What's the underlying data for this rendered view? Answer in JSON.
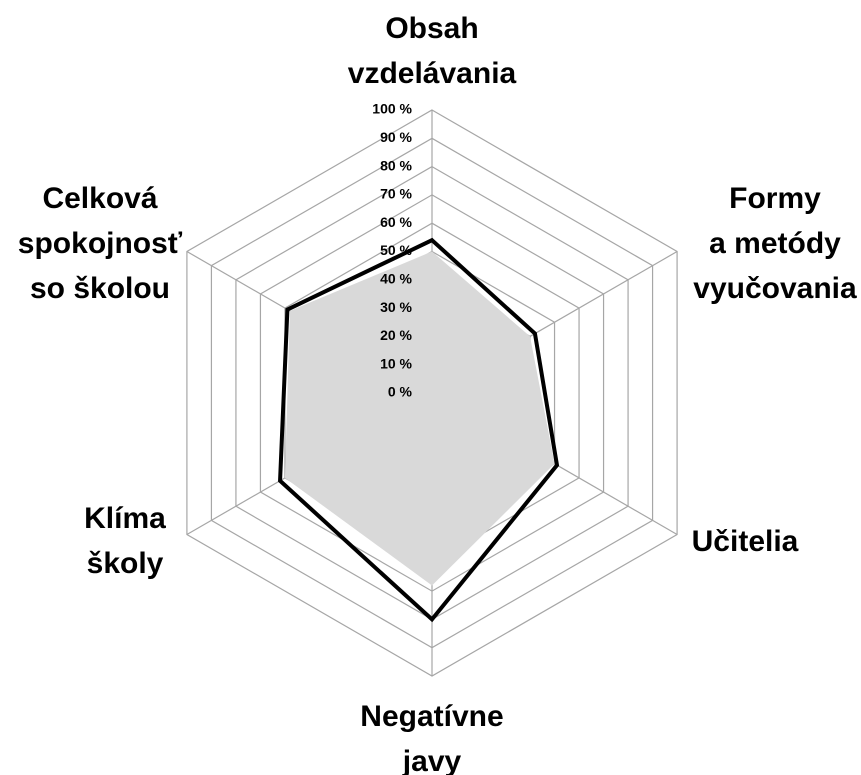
{
  "chart_data": {
    "type": "radar",
    "categories": [
      [
        "Obsah",
        "vzdelávania"
      ],
      [
        "Formy",
        "a metódy",
        "vyučovania"
      ],
      [
        "Učitelia"
      ],
      [
        "Negatívne",
        "javy"
      ],
      [
        "Klíma",
        "školy"
      ],
      [
        "Celková",
        "spokojnosť",
        "so školou"
      ]
    ],
    "series": [
      {
        "color": "#d9d9d9",
        "fill": true,
        "values": [
          50,
          40,
          50,
          68,
          60,
          58
        ]
      },
      {
        "color": "#000000",
        "fill": false,
        "values": [
          54,
          42,
          51,
          80,
          62,
          59
        ]
      }
    ],
    "ylim": [
      0,
      100
    ],
    "yticks": [
      {
        "value": 0,
        "label": "0 %"
      },
      {
        "value": 10,
        "label": "10 %"
      },
      {
        "value": 20,
        "label": "20 %"
      },
      {
        "value": 30,
        "label": "30 %"
      },
      {
        "value": 40,
        "label": "40 %"
      },
      {
        "value": 50,
        "label": "50 %"
      },
      {
        "value": 60,
        "label": "60 %"
      },
      {
        "value": 70,
        "label": "70 %"
      },
      {
        "value": 80,
        "label": "80 %"
      },
      {
        "value": 90,
        "label": "90 %"
      },
      {
        "value": 100,
        "label": "100 %"
      }
    ],
    "grid": true
  }
}
